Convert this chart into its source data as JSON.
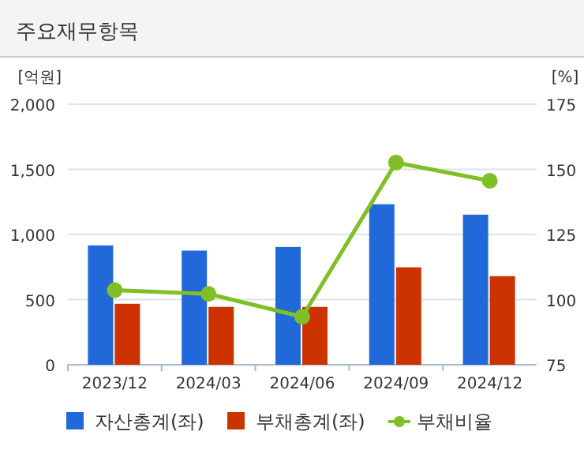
{
  "chart_data": {
    "type": "bar",
    "title": "주요재무항목",
    "ylabel": "[억원]",
    "y2label": "[%]",
    "categories": [
      "2023/12",
      "2024/03",
      "2024/06",
      "2024/09",
      "2024/12"
    ],
    "series": [
      {
        "name": "자산총계(좌)",
        "color": "#2168d8",
        "values": [
          916,
          876,
          904,
          1232,
          1152
        ]
      },
      {
        "name": "부채총계(좌)",
        "color": "#cc3300",
        "values": [
          468,
          444,
          444,
          748,
          680
        ]
      },
      {
        "name": "부채비율",
        "type": "line",
        "axis": "y2",
        "color": "#80bf26",
        "marker": "circle",
        "values": [
          103.6,
          102.2,
          93.4,
          152.6,
          145.6
        ]
      }
    ],
    "ylim": [
      0,
      2000
    ],
    "yticks": [
      0,
      {
        "value": 500,
        "label": "500"
      },
      {
        "value": 1000,
        "label": "1,000"
      },
      {
        "value": 1500,
        "label": "1,500"
      },
      {
        "value": 2000,
        "label": "2,000"
      }
    ],
    "y2lim": [
      75,
      175
    ],
    "y2ticks": [
      75,
      100,
      125,
      150,
      175
    ],
    "grid": "y",
    "legend": "bottom"
  }
}
